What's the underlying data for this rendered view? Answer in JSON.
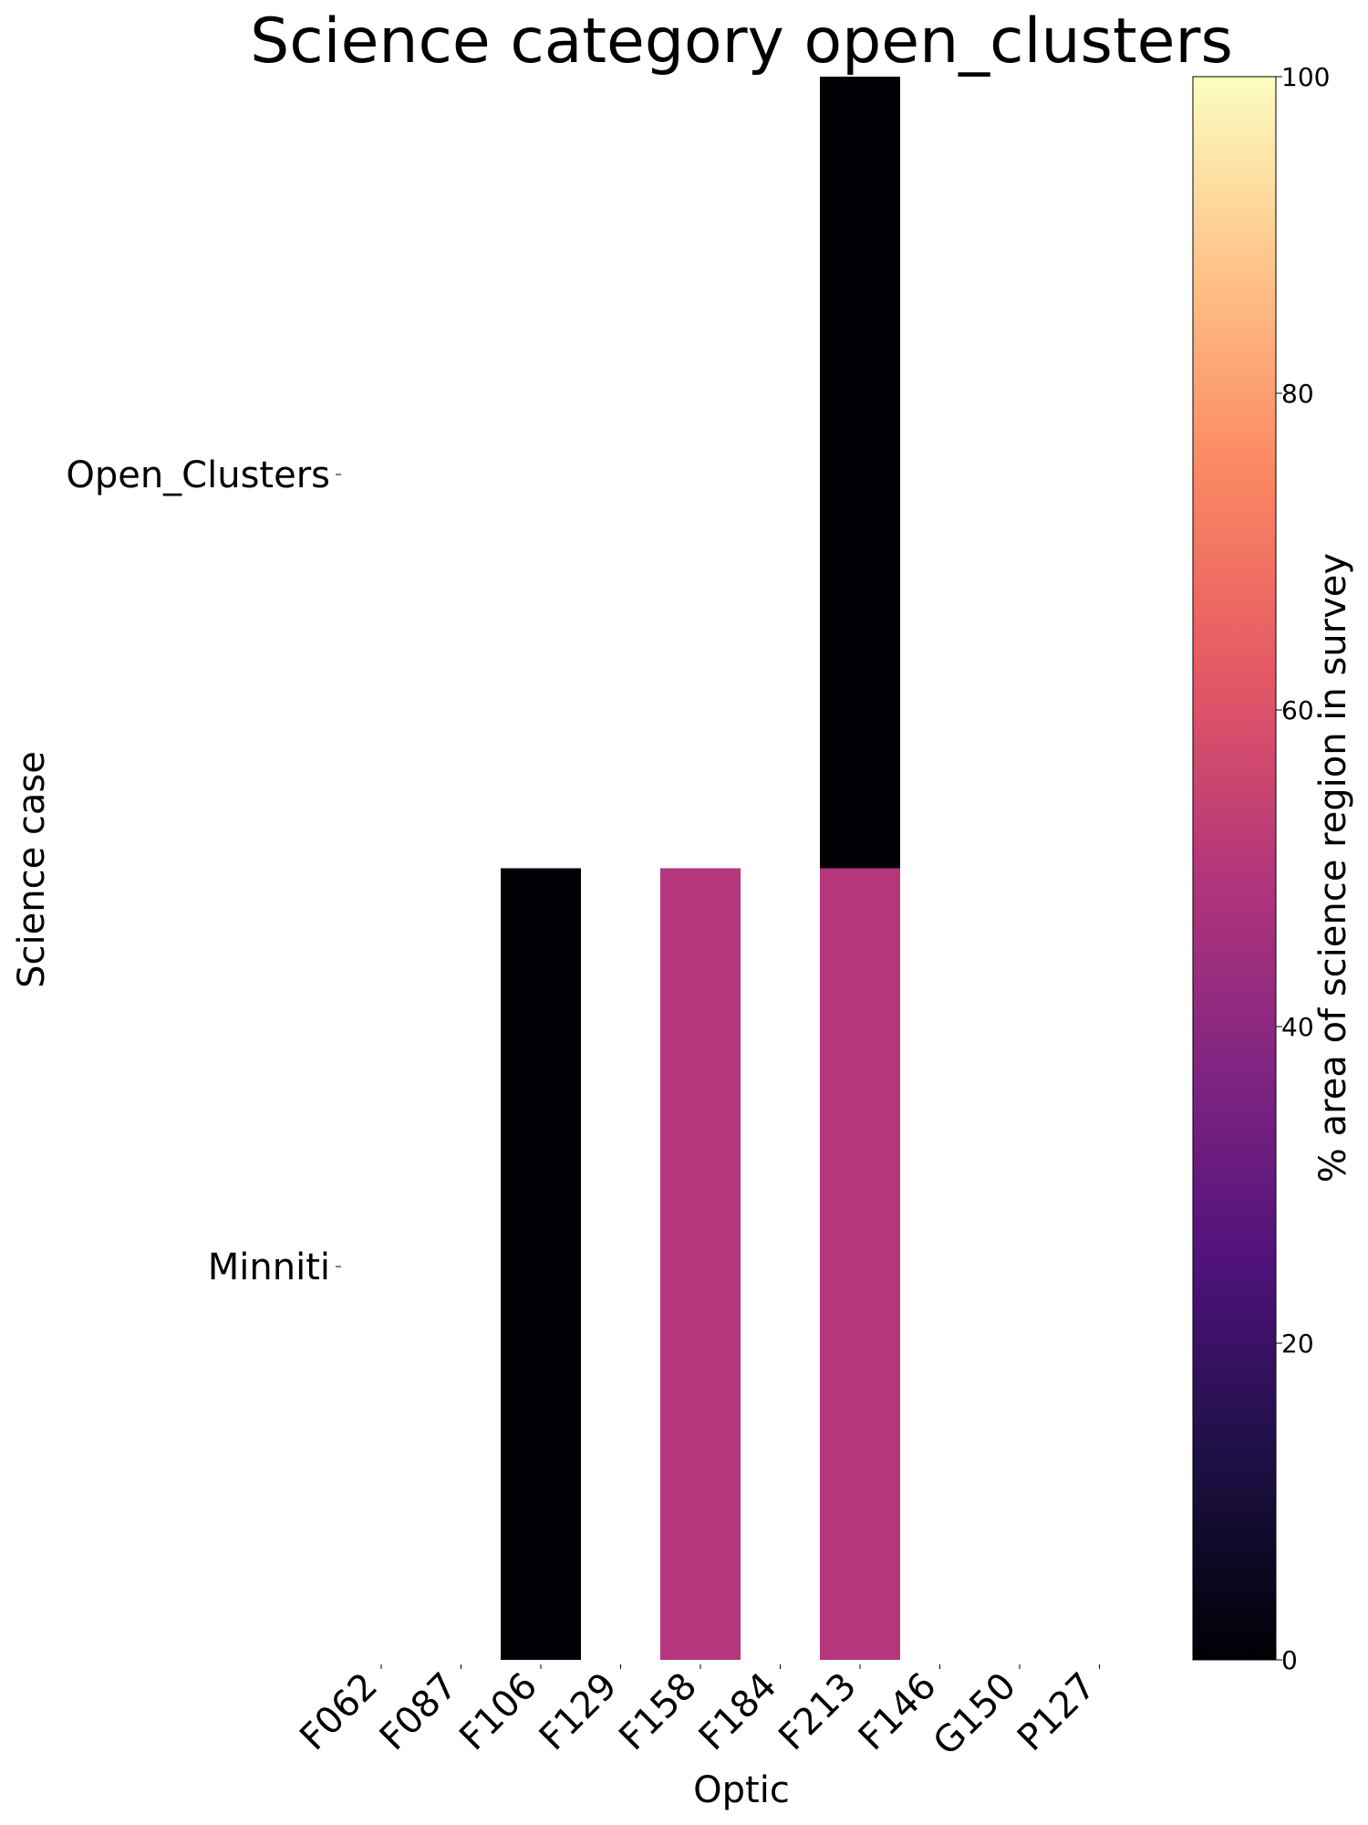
{
  "chart_data": {
    "type": "heatmap",
    "title": "Science category open_clusters",
    "xlabel": "Optic",
    "ylabel": "Science case",
    "x_categories": [
      "F062",
      "F087",
      "F106",
      "F129",
      "F158",
      "F184",
      "F213",
      "F146",
      "G150",
      "P127"
    ],
    "y_categories": [
      "Open_Clusters",
      "Minniti"
    ],
    "cells": [
      {
        "row": "Open_Clusters",
        "col": "F213",
        "value": 0
      },
      {
        "row": "Minniti",
        "col": "F106",
        "value": 0
      },
      {
        "row": "Minniti",
        "col": "F158",
        "value": 50
      },
      {
        "row": "Minniti",
        "col": "F213",
        "value": 50
      }
    ],
    "colorbar": {
      "label": "% area of science region in survey",
      "range": [
        0,
        100
      ],
      "ticks": [
        "0",
        "20",
        "40",
        "60",
        "80",
        "100"
      ],
      "colormap": "magma",
      "stops": [
        "#000004",
        "#1c1044",
        "#4f127b",
        "#812581",
        "#b5367a",
        "#e55964",
        "#fb8761",
        "#fec287",
        "#fcfdbf"
      ]
    },
    "grid": false
  }
}
